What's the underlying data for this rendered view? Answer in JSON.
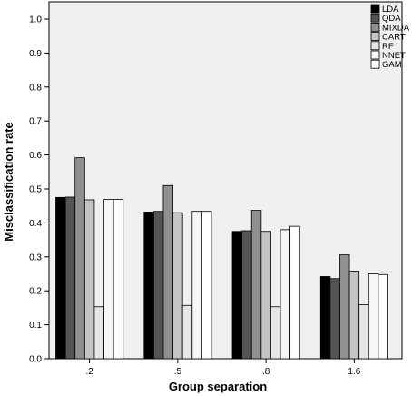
{
  "chart_data": {
    "type": "bar",
    "xlabel": "Group separation",
    "ylabel": "Misclassification rate",
    "categories": [
      ".2",
      ".5",
      ".8",
      "1.6"
    ],
    "ylim": [
      0,
      1.0
    ],
    "yticks": [
      "0.0",
      "0.1",
      "0.2",
      "0.3",
      "0.4",
      "0.5",
      "0.6",
      "0.7",
      "0.8",
      "0.9",
      "1.0"
    ],
    "grid": false,
    "legend_position": "top-right",
    "series": [
      {
        "name": "LDA",
        "color": "#000000",
        "values": [
          0.475,
          0.432,
          0.375,
          0.242
        ]
      },
      {
        "name": "QDA",
        "color": "#555555",
        "values": [
          0.476,
          0.434,
          0.377,
          0.236
        ]
      },
      {
        "name": "MIXDA",
        "color": "#909090",
        "values": [
          0.592,
          0.51,
          0.437,
          0.306
        ]
      },
      {
        "name": "CART",
        "color": "#c4c4c4",
        "values": [
          0.468,
          0.43,
          0.375,
          0.258
        ]
      },
      {
        "name": "RF",
        "color": "#e6e6e6",
        "values": [
          0.153,
          0.157,
          0.153,
          0.159
        ]
      },
      {
        "name": "NNET",
        "color": "#f6f6f6",
        "values": [
          0.469,
          0.434,
          0.38,
          0.25
        ]
      },
      {
        "name": "GAM",
        "color": "#ffffff",
        "values": [
          0.469,
          0.434,
          0.39,
          0.248
        ]
      }
    ]
  }
}
